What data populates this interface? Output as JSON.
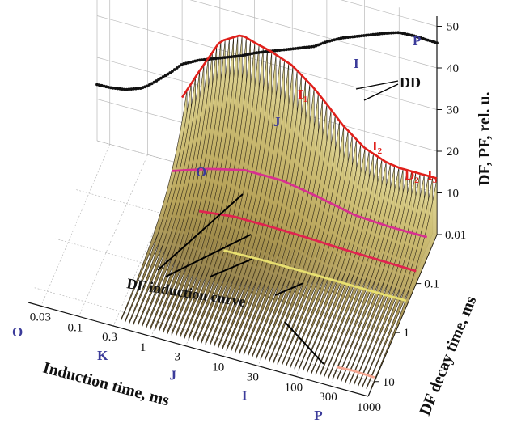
{
  "chart_data": {
    "type": "3d-waterfall",
    "x_axis": {
      "label": "Induction time, ms",
      "ticks": [
        "0.03",
        "0.1",
        "0.3",
        "1",
        "3",
        "10",
        "30",
        "100",
        "300",
        "1000"
      ],
      "phase_ticks": [
        "O",
        "K",
        "J",
        "I",
        "P"
      ]
    },
    "y_axis": {
      "label": "DF decay time, ms",
      "ticks": [
        "0.01",
        "0.1",
        "1",
        "10"
      ]
    },
    "z_axis": {
      "label": "DF, PF, rel. u.",
      "ticks": [
        "10",
        "20",
        "30",
        "40",
        "50"
      ],
      "zlim": [
        0,
        50
      ]
    },
    "prompt_fluorescence": {
      "name": "PF",
      "phase_labels": [
        "O",
        "J",
        "I",
        "P"
      ],
      "t_ms": [
        0.02,
        0.03,
        0.05,
        0.08,
        0.1,
        0.2,
        0.3,
        0.5,
        1,
        2,
        3,
        5,
        10,
        20,
        30,
        50,
        100,
        200,
        300,
        500,
        1000
      ],
      "values": [
        13.5,
        13.6,
        14.2,
        15.5,
        16.5,
        21,
        24,
        26,
        28,
        30,
        31.5,
        33,
        35,
        37,
        39,
        41,
        43,
        45,
        46,
        46.2,
        46
      ]
    },
    "annotations": {
      "dd": "DD",
      "df_curve": "DF induction curve",
      "df_peaks": [
        "I",
        "1",
        "I",
        "2",
        "D",
        "2",
        "I",
        "3"
      ]
    },
    "df_induction_curves": [
      {
        "decay_ms": 0.01,
        "color": "#e0201b",
        "t_ms": [
          0.3,
          0.5,
          1,
          2,
          3,
          5,
          10,
          20,
          30,
          50,
          100,
          200,
          300,
          500,
          1000
        ],
        "values": [
          16,
          23,
          32,
          35,
          34,
          33,
          31,
          27,
          24,
          20,
          16,
          14,
          13.5,
          13.5,
          13.5
        ]
      },
      {
        "decay_ms": 0.03,
        "color": "#d8308f",
        "t_ms": [
          0.3,
          1,
          3,
          10,
          30,
          100,
          300,
          1000
        ],
        "values": [
          4,
          7,
          9,
          9,
          7.5,
          5.5,
          5,
          5
        ]
      },
      {
        "decay_ms": 0.1,
        "color": "#e0234f",
        "t_ms": [
          1,
          3,
          10,
          30,
          100,
          300,
          1000
        ],
        "values": [
          3,
          4,
          4,
          3.8,
          3.4,
          3.2,
          3
        ]
      },
      {
        "decay_ms": 0.3,
        "color": "#e8e070",
        "t_ms": [
          3,
          10,
          30,
          100,
          300,
          1000
        ],
        "values": [
          1.5,
          1.7,
          1.7,
          1.6,
          1.5,
          1.5
        ]
      },
      {
        "decay_ms": 10,
        "color": "#f4a590",
        "t_ms": [
          300,
          500,
          1000
        ],
        "values": [
          1,
          1.2,
          1
        ]
      }
    ]
  }
}
